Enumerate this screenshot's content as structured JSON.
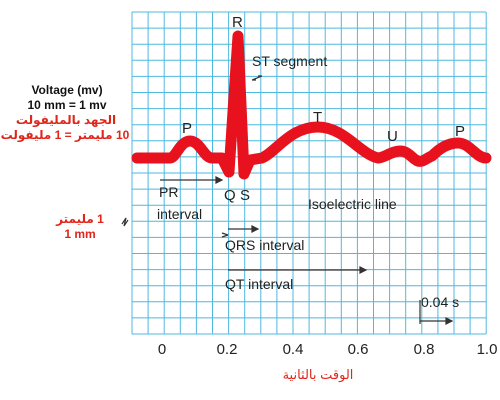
{
  "diagram": {
    "wave_labels": {
      "P1": "P",
      "R": "R",
      "Q": "Q",
      "S": "S",
      "T": "T",
      "U": "U",
      "P2": "P"
    },
    "annotations": {
      "st_segment": "ST segment",
      "pr_line1": "PR",
      "pr_line2": "interval",
      "isoelectric": "Isoelectric line",
      "qrs_interval": "QRS interval",
      "qt_interval": "QT interval",
      "time_unit": "0.04 s"
    },
    "x_ticks": [
      "0",
      "0.2",
      "0.4",
      "0.6",
      "0.8",
      "1.0"
    ],
    "x_axis_label": "الوقت بالثانية",
    "voltage": {
      "title": "Voltage (mv)",
      "scale": "10 mm = 1 mv",
      "arabic_title": "الجهد بالمليفولت",
      "arabic_scale": "10 مليمتر = 1 مليفولت"
    },
    "mm_scale": {
      "arabic": "1 مليمتر",
      "english": "1 mm"
    }
  },
  "colors": {
    "grid": "#4fb8df",
    "wave": "#e8121e",
    "arabic_text": "#e0261a",
    "arrow": "#333333"
  }
}
